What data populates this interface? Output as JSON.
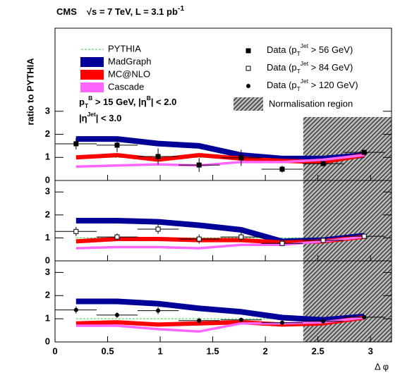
{
  "chart_data": [
    {
      "type": "line",
      "title": [
        "CMS",
        "√s = 7 TeV, L = 3.1 pb",
        "-1"
      ],
      "ylabel": "ratio to PYTHIA",
      "annotations": [
        [
          "p",
          "T",
          "B",
          " > 15 GeV, |η",
          "B",
          "| < 2.0"
        ],
        [
          "|η",
          "Jet",
          "| < 3.0"
        ]
      ],
      "norm_label": "Normalisation region",
      "norm_region": [
        2.36,
        3.2
      ],
      "norm_ymax": 2.75,
      "xlim": [
        0,
        3.2
      ],
      "ylim": [
        0,
        6.6
      ],
      "yticks": [
        0,
        1,
        2,
        3
      ],
      "x": [
        0.2,
        0.59,
        0.98,
        1.37,
        1.77,
        2.16,
        2.55,
        2.94
      ],
      "xerr": 0.196,
      "series": [
        {
          "name": "PYTHIA",
          "color": "#33cc33",
          "style": "dashed",
          "values": [
            1,
            1,
            1,
            1,
            1,
            1,
            1,
            1
          ]
        },
        {
          "name": "MadGraph",
          "color": "#000099",
          "style": "band",
          "values": [
            1.8,
            1.8,
            1.6,
            1.5,
            1.1,
            0.95,
            0.95,
            1.1
          ]
        },
        {
          "name": "MC@NLO",
          "color": "#ff0000",
          "style": "thick",
          "values": [
            1.0,
            1.1,
            0.9,
            1.1,
            0.95,
            0.85,
            0.8,
            1.1
          ]
        },
        {
          "name": "Cascade",
          "color": "#ff66ff",
          "style": "medium",
          "values": [
            0.6,
            0.65,
            0.7,
            0.65,
            0.8,
            0.8,
            0.9,
            1.1
          ]
        },
        {
          "name": [
            "Data (p",
            "T",
            "Jet",
            " > 56 GeV)"
          ],
          "color": "#000000",
          "style": "square",
          "values": [
            1.59,
            1.53,
            1.04,
            0.67,
            0.98,
            0.49,
            0.73,
            1.22
          ],
          "yerr": [
            0.25,
            0.3,
            0.35,
            0.3,
            0.35,
            0.15,
            0.1,
            0.1
          ]
        }
      ]
    },
    {
      "type": "line",
      "norm_region": [
        2.36,
        3.2
      ],
      "xlim": [
        0,
        3.2
      ],
      "ylim": [
        0,
        3.5
      ],
      "yticks": [
        0,
        1,
        2,
        3
      ],
      "x": [
        0.2,
        0.59,
        0.98,
        1.37,
        1.77,
        2.16,
        2.55,
        2.94
      ],
      "xerr": 0.196,
      "series": [
        {
          "color": "#33cc33",
          "style": "dashed",
          "values": [
            1,
            1,
            1,
            1,
            1,
            1,
            1,
            1
          ]
        },
        {
          "color": "#000099",
          "style": "band",
          "values": [
            1.75,
            1.75,
            1.7,
            1.55,
            1.35,
            0.85,
            0.9,
            1.1
          ]
        },
        {
          "color": "#ff0000",
          "style": "thick",
          "values": [
            0.85,
            0.95,
            0.95,
            0.9,
            0.9,
            0.8,
            0.85,
            1.05
          ]
        },
        {
          "color": "#ff66ff",
          "style": "medium",
          "values": [
            0.55,
            0.6,
            0.6,
            0.55,
            0.7,
            0.7,
            0.85,
            1.05
          ]
        },
        {
          "name": [
            "Data (p",
            "T",
            "Jet",
            " > 84 GeV)"
          ],
          "color": "#000000",
          "style": "open-square",
          "values": [
            1.28,
            1.04,
            1.38,
            0.95,
            1.04,
            0.76,
            0.89,
            1.07
          ],
          "yerr": [
            0.2,
            0.15,
            0.2,
            0.2,
            0.2,
            0.1,
            0.08,
            0.06
          ]
        }
      ]
    },
    {
      "type": "line",
      "norm_region": [
        2.36,
        3.2
      ],
      "xlabel": "Δ φ",
      "xlim": [
        0,
        3.2
      ],
      "ylim": [
        0,
        3.5
      ],
      "yticks": [
        0,
        1,
        2,
        3
      ],
      "xticks": [
        0,
        0.5,
        1,
        1.5,
        2,
        2.5,
        3
      ],
      "x": [
        0.2,
        0.59,
        0.98,
        1.37,
        1.77,
        2.16,
        2.55,
        2.94
      ],
      "xerr": 0.196,
      "series": [
        {
          "color": "#33cc33",
          "style": "dashed",
          "values": [
            1,
            1,
            1,
            1,
            1,
            1,
            1,
            1
          ]
        },
        {
          "color": "#000099",
          "style": "band",
          "values": [
            1.75,
            1.75,
            1.65,
            1.45,
            1.3,
            1.05,
            0.95,
            1.1
          ]
        },
        {
          "color": "#ff0000",
          "style": "thick",
          "values": [
            0.8,
            0.85,
            0.75,
            0.8,
            0.85,
            0.75,
            0.8,
            1.05
          ]
        },
        {
          "color": "#ff66ff",
          "style": "medium",
          "values": [
            0.7,
            0.7,
            0.55,
            0.45,
            0.8,
            0.8,
            0.85,
            1.05
          ]
        },
        {
          "name": [
            "Data (p",
            "T",
            "Jet",
            " > 120 GeV)"
          ],
          "color": "#000000",
          "style": "circle",
          "values": [
            1.38,
            1.16,
            1.35,
            0.92,
            0.95,
            0.83,
            0.89,
            1.07
          ],
          "yerr": [
            0.15,
            0.12,
            0.15,
            0.12,
            0.1,
            0.08,
            0.06,
            0.05
          ]
        }
      ]
    }
  ]
}
